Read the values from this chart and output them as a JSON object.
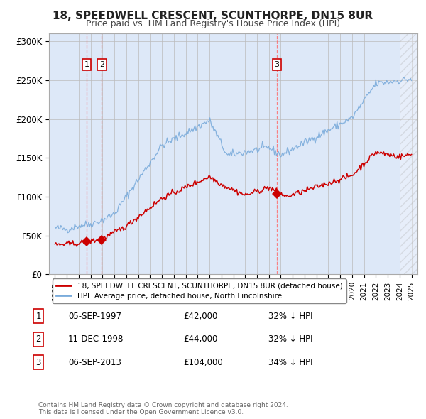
{
  "title": "18, SPEEDWELL CRESCENT, SCUNTHORPE, DN15 8UR",
  "subtitle": "Price paid vs. HM Land Registry's House Price Index (HPI)",
  "title_fontsize": 11,
  "subtitle_fontsize": 9,
  "ylim": [
    0,
    310000
  ],
  "yticks": [
    0,
    50000,
    100000,
    150000,
    200000,
    250000,
    300000
  ],
  "ytick_labels": [
    "£0",
    "£50K",
    "£100K",
    "£150K",
    "£200K",
    "£250K",
    "£300K"
  ],
  "background_color": "#ffffff",
  "plot_bg_color": "#dde8f8",
  "grid_color": "#bbbbbb",
  "legend_line1": "18, SPEEDWELL CRESCENT, SCUNTHORPE, DN15 8UR (detached house)",
  "legend_line2": "HPI: Average price, detached house, North Lincolnshire",
  "red_color": "#cc0000",
  "blue_color": "#7aabdb",
  "transactions": [
    {
      "date_num": 1997.67,
      "price": 42000,
      "label": "1",
      "date_str": "05-SEP-1997",
      "price_str": "£42,000",
      "hpi_str": "32% ↓ HPI"
    },
    {
      "date_num": 1998.94,
      "price": 44000,
      "label": "2",
      "date_str": "11-DEC-1998",
      "price_str": "£44,000",
      "hpi_str": "32% ↓ HPI"
    },
    {
      "date_num": 2013.67,
      "price": 104000,
      "label": "3",
      "date_str": "06-SEP-2013",
      "price_str": "£104,000",
      "hpi_str": "34% ↓ HPI"
    }
  ],
  "footer_line1": "Contains HM Land Registry data © Crown copyright and database right 2024.",
  "footer_line2": "This data is licensed under the Open Government Licence v3.0.",
  "xmin": 1994.5,
  "xmax": 2025.5
}
